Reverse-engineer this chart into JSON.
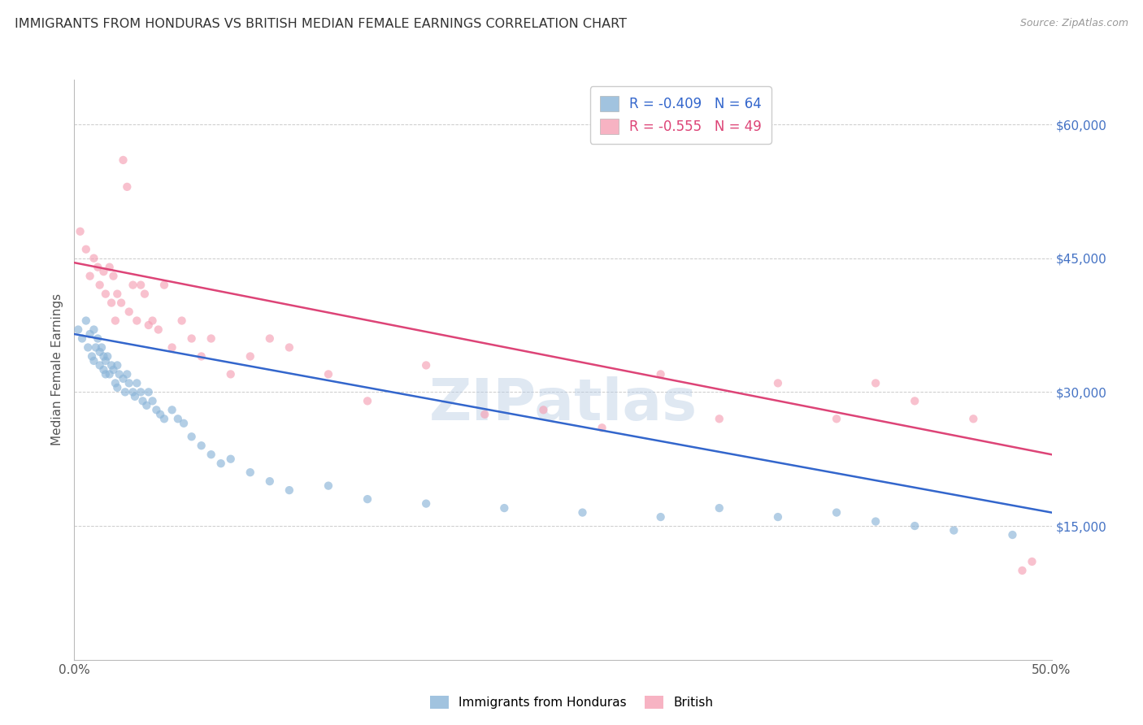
{
  "title": "IMMIGRANTS FROM HONDURAS VS BRITISH MEDIAN FEMALE EARNINGS CORRELATION CHART",
  "source": "Source: ZipAtlas.com",
  "ylabel": "Median Female Earnings",
  "legend_label1": "Immigrants from Honduras",
  "legend_label2": "British",
  "R1": -0.409,
  "N1": 64,
  "R2": -0.555,
  "N2": 49,
  "color1": "#8ab4d8",
  "color2": "#f5a0b5",
  "line_color1": "#3366cc",
  "line_color2": "#dd4477",
  "watermark": "ZIPatlas",
  "xlim": [
    0.0,
    0.5
  ],
  "ylim": [
    0,
    65000
  ],
  "yticks": [
    0,
    15000,
    30000,
    45000,
    60000
  ],
  "background_color": "#ffffff",
  "grid_color": "#cccccc",
  "title_color": "#333333",
  "right_tick_color": "#4472c4",
  "blue_line_x0": 0.0,
  "blue_line_y0": 36500,
  "blue_line_x1": 0.5,
  "blue_line_y1": 16500,
  "pink_line_x0": 0.0,
  "pink_line_y0": 44500,
  "pink_line_x1": 0.5,
  "pink_line_y1": 23000,
  "scatter1_x": [
    0.002,
    0.004,
    0.006,
    0.007,
    0.008,
    0.009,
    0.01,
    0.01,
    0.011,
    0.012,
    0.013,
    0.013,
    0.014,
    0.015,
    0.015,
    0.016,
    0.016,
    0.017,
    0.018,
    0.019,
    0.02,
    0.021,
    0.022,
    0.022,
    0.023,
    0.025,
    0.026,
    0.027,
    0.028,
    0.03,
    0.031,
    0.032,
    0.034,
    0.035,
    0.037,
    0.038,
    0.04,
    0.042,
    0.044,
    0.046,
    0.05,
    0.053,
    0.056,
    0.06,
    0.065,
    0.07,
    0.075,
    0.08,
    0.09,
    0.1,
    0.11,
    0.13,
    0.15,
    0.18,
    0.22,
    0.26,
    0.3,
    0.33,
    0.36,
    0.39,
    0.41,
    0.43,
    0.45,
    0.48
  ],
  "scatter1_y": [
    37000,
    36000,
    38000,
    35000,
    36500,
    34000,
    37000,
    33500,
    35000,
    36000,
    34500,
    33000,
    35000,
    34000,
    32500,
    33500,
    32000,
    34000,
    32000,
    33000,
    32500,
    31000,
    33000,
    30500,
    32000,
    31500,
    30000,
    32000,
    31000,
    30000,
    29500,
    31000,
    30000,
    29000,
    28500,
    30000,
    29000,
    28000,
    27500,
    27000,
    28000,
    27000,
    26500,
    25000,
    24000,
    23000,
    22000,
    22500,
    21000,
    20000,
    19000,
    19500,
    18000,
    17500,
    17000,
    16500,
    16000,
    17000,
    16000,
    16500,
    15500,
    15000,
    14500,
    14000
  ],
  "scatter2_x": [
    0.003,
    0.006,
    0.008,
    0.01,
    0.012,
    0.013,
    0.015,
    0.016,
    0.018,
    0.019,
    0.02,
    0.021,
    0.022,
    0.024,
    0.025,
    0.027,
    0.028,
    0.03,
    0.032,
    0.034,
    0.036,
    0.038,
    0.04,
    0.043,
    0.046,
    0.05,
    0.055,
    0.06,
    0.065,
    0.07,
    0.08,
    0.09,
    0.1,
    0.11,
    0.13,
    0.15,
    0.18,
    0.21,
    0.24,
    0.27,
    0.3,
    0.33,
    0.36,
    0.39,
    0.41,
    0.43,
    0.46,
    0.485,
    0.49
  ],
  "scatter2_y": [
    48000,
    46000,
    43000,
    45000,
    44000,
    42000,
    43500,
    41000,
    44000,
    40000,
    43000,
    38000,
    41000,
    40000,
    56000,
    53000,
    39000,
    42000,
    38000,
    42000,
    41000,
    37500,
    38000,
    37000,
    42000,
    35000,
    38000,
    36000,
    34000,
    36000,
    32000,
    34000,
    36000,
    35000,
    32000,
    29000,
    33000,
    27500,
    28000,
    26000,
    32000,
    27000,
    31000,
    27000,
    31000,
    29000,
    27000,
    10000,
    11000
  ]
}
